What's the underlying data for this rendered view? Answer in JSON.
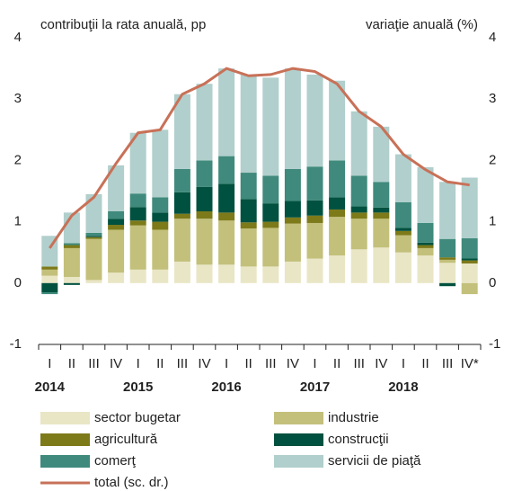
{
  "chart_data": {
    "type": "bar",
    "stacked": true,
    "y_label": "contribuţii la rata anuală, pp",
    "y2_label": "variaţie anuală (%)",
    "categories": [
      "I",
      "II",
      "III",
      "IV",
      "I",
      "II",
      "III",
      "IV",
      "I",
      "II",
      "III",
      "IV",
      "I",
      "II",
      "III",
      "IV",
      "I",
      "II",
      "III",
      "IV*"
    ],
    "years": [
      "2014",
      "2015",
      "2016",
      "2017",
      "2018"
    ],
    "ylim": [
      -1,
      4
    ],
    "yticks": [
      -1,
      0,
      1,
      2,
      3,
      4
    ],
    "y2lim": [
      -1,
      4
    ],
    "y2ticks": [
      -1,
      0,
      1,
      2,
      3,
      4
    ],
    "grid": false,
    "series": [
      {
        "name": "sector bugetar",
        "color": "#e9e6c6",
        "values": [
          0.12,
          0.1,
          0.05,
          0.17,
          0.22,
          0.22,
          0.35,
          0.3,
          0.3,
          0.27,
          0.27,
          0.35,
          0.4,
          0.45,
          0.55,
          0.58,
          0.5,
          0.45,
          0.33,
          0.32
        ]
      },
      {
        "name": "industrie",
        "color": "#c3c07b",
        "values": [
          0.1,
          0.47,
          0.67,
          0.7,
          0.72,
          0.65,
          0.7,
          0.75,
          0.72,
          0.62,
          0.63,
          0.62,
          0.58,
          0.63,
          0.5,
          0.47,
          0.28,
          0.12,
          0.05,
          -0.18
        ]
      },
      {
        "name": "agricultură",
        "color": "#7d7a1a",
        "values": [
          0.05,
          0.05,
          0.03,
          0.08,
          0.08,
          0.13,
          0.08,
          0.12,
          0.13,
          0.1,
          0.1,
          0.1,
          0.12,
          0.12,
          0.1,
          0.1,
          0.07,
          0.05,
          0.04,
          0.05
        ]
      },
      {
        "name": "construcţii",
        "color": "#00513f",
        "values": [
          -0.15,
          -0.03,
          0.02,
          0.1,
          0.22,
          0.15,
          0.35,
          0.4,
          0.47,
          0.38,
          0.3,
          0.27,
          0.25,
          0.2,
          0.1,
          0.08,
          0.05,
          0.04,
          -0.05,
          0.03
        ]
      },
      {
        "name": "comerţ",
        "color": "#3f8a7c",
        "values": [
          -0.03,
          0.03,
          0.05,
          0.12,
          0.22,
          0.25,
          0.38,
          0.43,
          0.45,
          0.43,
          0.45,
          0.52,
          0.55,
          0.6,
          0.5,
          0.42,
          0.42,
          0.32,
          0.3,
          0.33
        ]
      },
      {
        "name": "servicii de piaţă",
        "color": "#b1cfcc",
        "values": [
          0.5,
          0.5,
          0.63,
          0.75,
          0.99,
          1.1,
          1.22,
          1.25,
          1.43,
          1.6,
          1.6,
          1.64,
          1.5,
          1.3,
          1.05,
          0.9,
          0.78,
          0.91,
          0.93,
          0.99
        ]
      },
      {
        "name": "total (sc. dr.)",
        "color": "#c87158",
        "type": "line",
        "axis": "y2",
        "values": [
          0.57,
          1.1,
          1.4,
          1.95,
          2.45,
          2.5,
          3.08,
          3.25,
          3.5,
          3.38,
          3.4,
          3.5,
          3.45,
          3.25,
          2.8,
          2.55,
          2.1,
          1.85,
          1.65,
          1.6
        ]
      }
    ]
  }
}
